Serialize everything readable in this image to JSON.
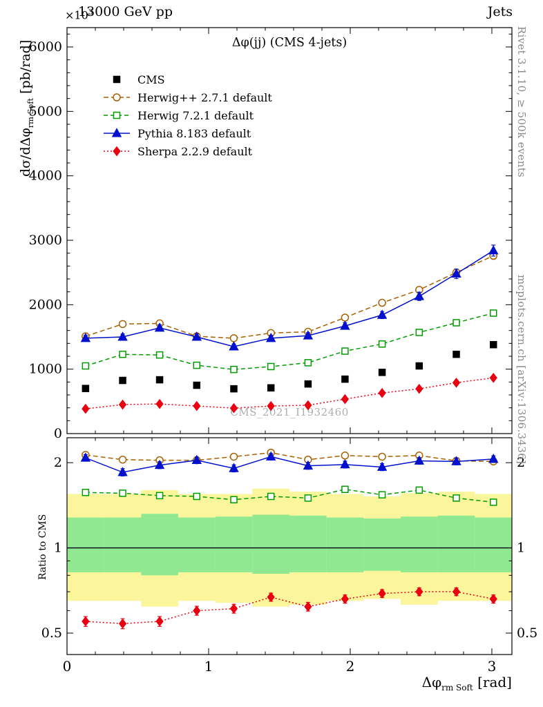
{
  "header": {
    "beam": "13000 GeV pp",
    "group": "Jets"
  },
  "watermark": "CMS_2021_I1932460",
  "side_notes": {
    "top": "Rivet 3.1.10, ≥ 500k events",
    "bottom": "mcplots.cern.ch [arXiv:1306.3436]"
  },
  "chart_data": {
    "type": "line",
    "title": "Δφ(jj) (CMS 4-jets)",
    "xlabel": {
      "text": "Δφ",
      "sub": "rm Soft",
      "units": "[rad]"
    },
    "ylabel": {
      "text": "dσ/dΔφ",
      "sub": "rm Soft",
      "units": "[pb/rad]",
      "scale_prefix": "×10",
      "scale_exp": "3"
    },
    "xlim": [
      0,
      3.1416
    ],
    "xticks": [
      0,
      1,
      2,
      3
    ],
    "x_minor_step": 0.2,
    "bin_edges": [
      0,
      0.262,
      0.524,
      0.785,
      1.047,
      1.309,
      1.571,
      1.833,
      2.094,
      2.356,
      2.618,
      2.88,
      3.1416
    ],
    "x": [
      0.131,
      0.393,
      0.654,
      0.916,
      1.178,
      1.44,
      1.702,
      1.963,
      2.225,
      2.487,
      2.749,
      3.011
    ],
    "main": {
      "ylim": [
        0,
        6300
      ],
      "yticks": [
        0,
        1000,
        2000,
        3000,
        4000,
        5000,
        6000
      ],
      "y_minor_step": 200,
      "series": [
        {
          "name": "cms",
          "label": "CMS",
          "color": "#000000",
          "marker": "square",
          "filled": true,
          "dash": null,
          "msize": 9,
          "values": [
            700,
            825,
            835,
            750,
            695,
            710,
            770,
            845,
            950,
            1050,
            1230,
            1380
          ]
        },
        {
          "name": "herwigpp",
          "label": "Herwig++ 2.7.1 default",
          "color": "#A86000",
          "marker": "circle",
          "filled": false,
          "dash": "7 4",
          "msize": 10,
          "err_rel": 0.02,
          "values": [
            1510,
            1700,
            1710,
            1510,
            1480,
            1560,
            1580,
            1800,
            2030,
            2230,
            2500,
            2760
          ],
          "ratio": [
            2.13,
            2.05,
            2.04,
            2.04,
            2.1,
            2.17,
            2.05,
            2.12,
            2.1,
            2.12,
            2.03,
            2.02
          ],
          "ratio_err": 0.045
        },
        {
          "name": "herwig7",
          "label": "Herwig 7.2.1 default",
          "color": "#009C00",
          "marker": "square",
          "filled": false,
          "dash": "6 4",
          "msize": 9,
          "err_rel": 0.015,
          "values": [
            1050,
            1230,
            1220,
            1060,
            995,
            1040,
            1100,
            1280,
            1390,
            1570,
            1720,
            1870
          ],
          "ratio": [
            1.57,
            1.56,
            1.53,
            1.52,
            1.48,
            1.52,
            1.5,
            1.61,
            1.54,
            1.6,
            1.5,
            1.45
          ],
          "ratio_err": 0.03
        },
        {
          "name": "pythia",
          "label": "Pythia 8.183 default",
          "color": "#0010CC",
          "marker": "triangle",
          "filled": true,
          "dash": "",
          "msize": 11,
          "err_rel": 0.03,
          "values": [
            1480,
            1500,
            1640,
            1500,
            1350,
            1480,
            1520,
            1670,
            1840,
            2130,
            2480,
            2840
          ],
          "ratio": [
            2.08,
            1.85,
            1.96,
            2.04,
            1.91,
            2.1,
            1.95,
            1.97,
            1.93,
            2.03,
            2.02,
            2.06
          ],
          "ratio_err": 0.055
        },
        {
          "name": "sherpa",
          "label": "Sherpa 2.2.9 default",
          "color": "#E80010",
          "marker": "diamond",
          "filled": true,
          "dash": "2 3",
          "msize": 10,
          "err_rel": 0.02,
          "values": [
            385,
            450,
            460,
            428,
            395,
            428,
            440,
            535,
            630,
            695,
            790,
            865
          ],
          "ratio": [
            0.55,
            0.54,
            0.55,
            0.6,
            0.61,
            0.67,
            0.62,
            0.66,
            0.69,
            0.7,
            0.7,
            0.66
          ],
          "ratio_err": 0.022
        }
      ]
    },
    "ratio": {
      "ylabel": "Ratio to CMS",
      "scale": "log",
      "ylim": [
        0.42,
        2.45
      ],
      "yticks": [
        0.5,
        1,
        2
      ],
      "y_minor_ticks": [
        0.6,
        0.7,
        0.8,
        0.9
      ],
      "baseline": 1,
      "bands": {
        "yellow": {
          "color": "#FBF59C",
          "lo": [
            0.65,
            0.65,
            0.62,
            0.65,
            0.64,
            0.62,
            0.63,
            0.65,
            0.66,
            0.63,
            0.65,
            0.65
          ],
          "hi": [
            1.55,
            1.55,
            1.6,
            1.55,
            1.55,
            1.62,
            1.58,
            1.55,
            1.52,
            1.56,
            1.58,
            1.55
          ]
        },
        "green": {
          "color": "#90E890",
          "lo": [
            0.82,
            0.82,
            0.8,
            0.82,
            0.82,
            0.81,
            0.82,
            0.82,
            0.83,
            0.82,
            0.82,
            0.82
          ],
          "hi": [
            1.28,
            1.28,
            1.32,
            1.28,
            1.29,
            1.31,
            1.3,
            1.28,
            1.27,
            1.29,
            1.3,
            1.28
          ]
        }
      }
    }
  }
}
